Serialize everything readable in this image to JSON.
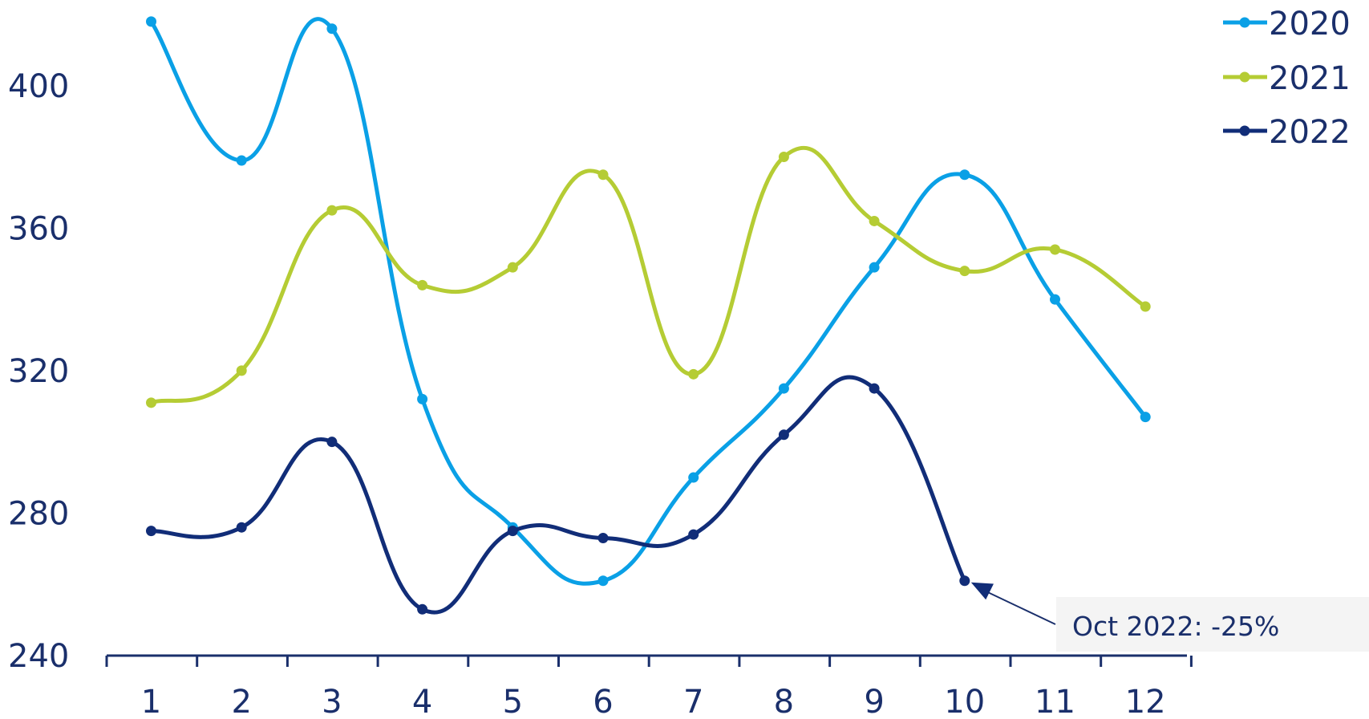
{
  "chart_data": {
    "type": "line",
    "x": [
      1,
      2,
      3,
      4,
      5,
      6,
      7,
      8,
      9,
      10,
      11,
      12
    ],
    "x_tick_labels": [
      "1",
      "2",
      "3",
      "4",
      "5",
      "6",
      "7",
      "8",
      "9",
      "10",
      "11",
      "12"
    ],
    "y_ticks": [
      240,
      280,
      320,
      360,
      400
    ],
    "y_tick_labels": [
      "240",
      "280",
      "320",
      "360",
      "400"
    ],
    "ylim": [
      240,
      420
    ],
    "grid": false,
    "smooth": true,
    "legend_position": "top-right",
    "series": [
      {
        "name": "2020",
        "color": "#0aa0e6",
        "values": [
          418,
          379,
          416,
          312,
          276,
          261,
          290,
          315,
          349,
          375,
          340,
          307
        ]
      },
      {
        "name": "2021",
        "color": "#b5cc34",
        "values": [
          311,
          320,
          365,
          344,
          349,
          375,
          319,
          380,
          362,
          348,
          354,
          338
        ]
      },
      {
        "name": "2022",
        "color": "#112d78",
        "values": [
          275,
          276,
          300,
          253,
          275,
          273,
          274,
          302,
          315,
          261,
          null,
          null
        ]
      }
    ],
    "annotations": [
      {
        "text": "Oct 2022: -25%",
        "series": "2022",
        "x": 10
      }
    ]
  }
}
